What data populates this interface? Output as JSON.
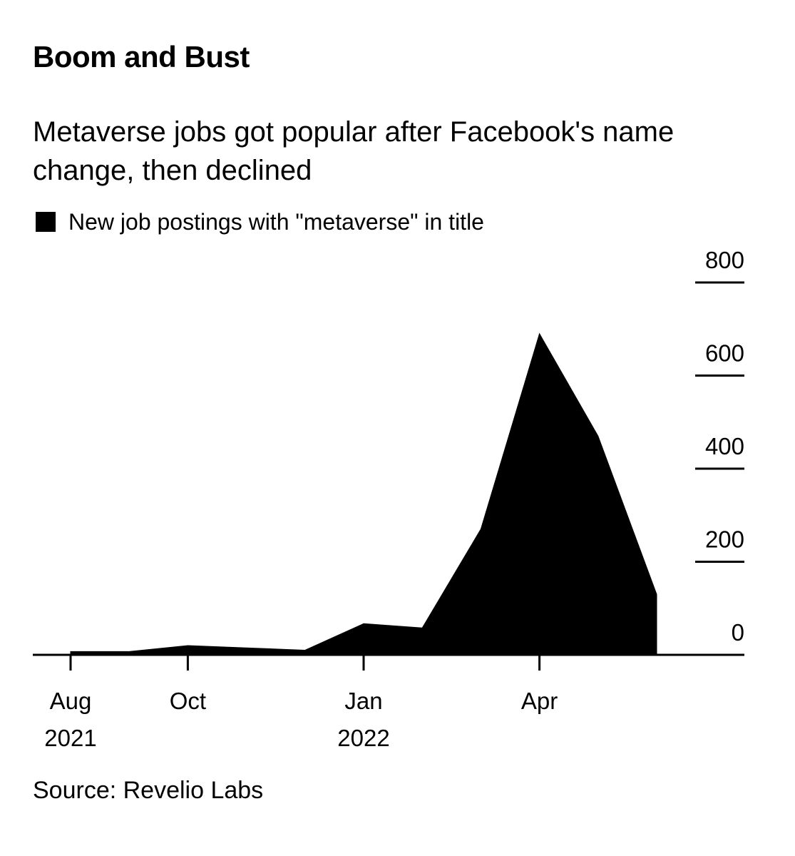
{
  "header": {
    "title": "Boom and Bust",
    "subtitle": "Metaverse jobs got popular after Facebook's name change, then declined"
  },
  "legend": {
    "label": "New job postings with \"metaverse\" in title",
    "color": "#000000"
  },
  "footer": {
    "source": "Source: Revelio Labs"
  },
  "chart_data": {
    "type": "area",
    "title": "Boom and Bust",
    "subtitle": "Metaverse jobs got popular after Facebook's name change, then declined",
    "xlabel": "",
    "ylabel": "",
    "series": [
      {
        "name": "New job postings with \"metaverse\" in title",
        "color": "#000000",
        "x": [
          "2021-08",
          "2021-09",
          "2021-10",
          "2021-11",
          "2021-12",
          "2022-01",
          "2022-02",
          "2022-03",
          "2022-04",
          "2022-05",
          "2022-06"
        ],
        "values": [
          7,
          7,
          20,
          15,
          10,
          67,
          58,
          270,
          690,
          470,
          130
        ]
      }
    ],
    "ylim": [
      0,
      800
    ],
    "yticks": [
      0,
      200,
      400,
      600,
      800
    ],
    "ytick_labels": [
      "0",
      "200",
      "400",
      "600",
      "800"
    ],
    "xticks": [
      {
        "x": "2021-08",
        "label": "Aug",
        "sublabel": "2021"
      },
      {
        "x": "2021-10",
        "label": "Oct",
        "sublabel": ""
      },
      {
        "x": "2022-01",
        "label": "Jan",
        "sublabel": "2022"
      },
      {
        "x": "2022-04",
        "label": "Apr",
        "sublabel": ""
      }
    ],
    "y_axis_position": "right",
    "grid": false,
    "legend_position": "top-left"
  }
}
